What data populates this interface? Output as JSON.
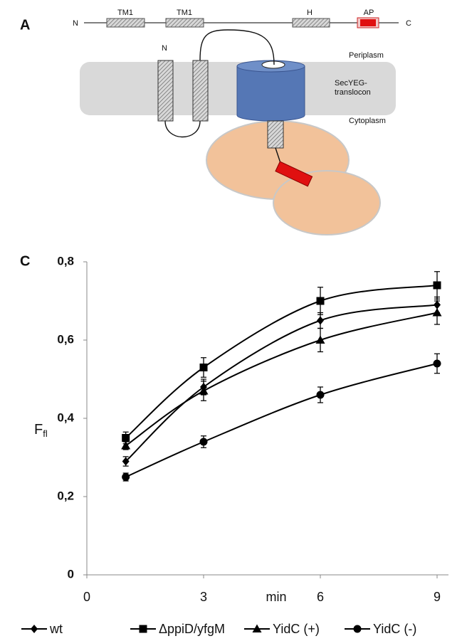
{
  "diagram": {
    "panel": "A",
    "topology": {
      "n_term": "N",
      "tm1a": "TM1",
      "tm1b": "TM1",
      "h": "H",
      "ap": "AP",
      "c_term": "C"
    },
    "n_label": "N",
    "periplasm": "Periplasm",
    "translocon_line1": "SecYEG-",
    "translocon_line2": "translocon",
    "cytoplasm": "Cytoplasm"
  },
  "chart_data": {
    "type": "line",
    "panel": "C",
    "xlabel": "min",
    "ylabel": "F",
    "ylabel_sub": "fl",
    "xlim": [
      0,
      9
    ],
    "xticks": [
      0,
      3,
      6,
      9
    ],
    "ylim": [
      0,
      0.8
    ],
    "yticks": [
      0,
      {
        "value": 0.2,
        "label": "0,2"
      },
      {
        "value": 0.4,
        "label": "0,4"
      },
      {
        "value": 0.6,
        "label": "0,6"
      },
      {
        "value": 0.8,
        "label": "0,8"
      }
    ],
    "x": [
      1,
      3,
      6,
      9
    ],
    "series": [
      {
        "name": "wt",
        "color": "#000000",
        "marker": "diamond",
        "values": [
          0.29,
          0.48,
          0.65,
          0.69
        ],
        "errors": [
          0.012,
          0.02,
          0.02,
          0.02
        ]
      },
      {
        "name": "ΔppiD/yfgM",
        "color": "#000000",
        "marker": "square",
        "values": [
          0.35,
          0.53,
          0.7,
          0.74
        ],
        "errors": [
          0.015,
          0.025,
          0.035,
          0.035
        ]
      },
      {
        "name": "YidC (+)",
        "color": "#000000",
        "marker": "triangle",
        "values": [
          0.33,
          0.47,
          0.6,
          0.67
        ],
        "errors": [
          0.01,
          0.025,
          0.03,
          0.03
        ]
      },
      {
        "name": "YidC (-)",
        "color": "#000000",
        "marker": "circle",
        "values": [
          0.25,
          0.34,
          0.46,
          0.54
        ],
        "errors": [
          0.01,
          0.015,
          0.02,
          0.025
        ]
      }
    ]
  }
}
